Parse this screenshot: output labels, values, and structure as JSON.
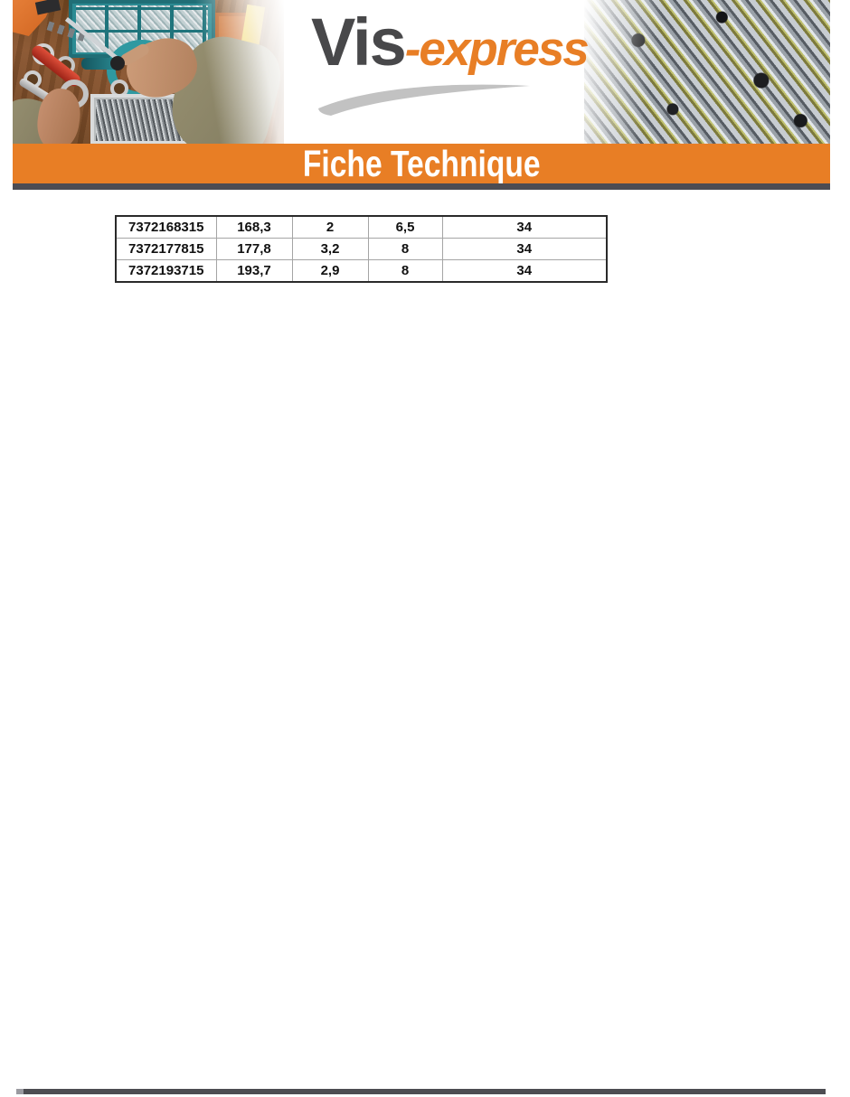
{
  "logo": {
    "text_primary": "Vis",
    "text_secondary": "-express",
    "color_primary": "#48484a",
    "color_secondary": "#e87e25"
  },
  "banner": {
    "title": "Fiche Technique",
    "background_color": "#e87e25",
    "text_color": "#ffffff"
  },
  "divider_color": "#4c4c53",
  "header_photos": {
    "left": "workbench-with-screw-organizer-and-hands",
    "right": "pile-of-screws"
  },
  "spec_table": {
    "rows": [
      [
        "7372168315",
        "168,3",
        "2",
        "6,5",
        "34"
      ],
      [
        "7372177815",
        "177,8",
        "3,2",
        "8",
        "34"
      ],
      [
        "7372193715",
        "193,7",
        "2,9",
        "8",
        "34"
      ]
    ]
  }
}
